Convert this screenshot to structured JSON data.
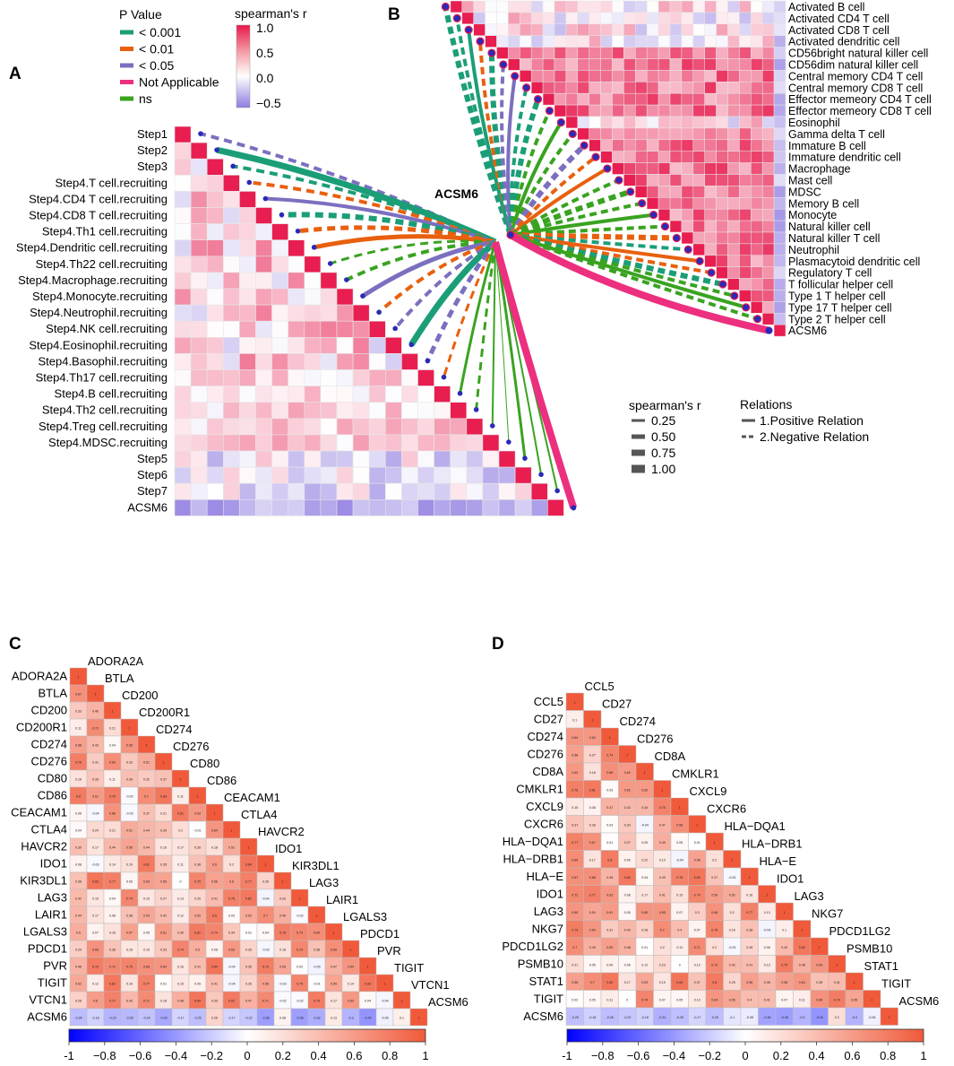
{
  "panels": {
    "a": "A",
    "b": "B",
    "c": "C",
    "d": "D"
  },
  "legend": {
    "pvalue_title": "P Value",
    "pvalue_items": [
      {
        "label": "< 0.001",
        "color": "#1b9e77"
      },
      {
        "label": "< 0.01",
        "color": "#e8600e"
      },
      {
        "label": "< 0.05",
        "color": "#7b6fc0"
      },
      {
        "label": "Not Applicable",
        "color": "#ec2f7e"
      },
      {
        "label": "ns",
        "color": "#39a320"
      }
    ],
    "colorbar_title": "spearman's r",
    "colorbar_ticks": [
      "1.0",
      "0.5",
      "0.0",
      "−0.5"
    ],
    "width_title": "spearman's r",
    "width_items": [
      "0.25",
      "0.50",
      "0.75",
      "1.00"
    ],
    "relation_title": "Relations",
    "relation_items": [
      "1.Positive Relation",
      "2.Negative Relation"
    ]
  },
  "target": "ACSM6",
  "colorbar_cd_ticks": [
    "-1",
    "−0.8",
    "−0.6",
    "−0.4",
    "−0.2",
    "0",
    "0.2",
    "0.4",
    "0.6",
    "0.8",
    "1"
  ],
  "chart_data": [
    {
      "type": "heatmap",
      "panel": "A",
      "title": "",
      "labels": [
        "Step1",
        "Step2",
        "Step3",
        "Step4.T cell.recruiting",
        "Step4.CD4 T cell.recruiting",
        "Step4.CD8 T cell.recruiting",
        "Step4.Th1 cell.recruiting",
        "Step4.Dendritic cell.recruiting",
        "Step4.Th22 cell.recruiting",
        "Step4.Macrophage.recruiting",
        "Step4.Monocyte.recruiting",
        "Step4.Neutrophil.recruiting",
        "Step4.NK cell.recruiting",
        "Step4.Eosinophil.recruiting",
        "Step4.Basophil.recruiting",
        "Step4.Th17 cell.recruiting",
        "Step4.B cell.recruiting",
        "Step4.Th2 cell.recruiting",
        "Step4.Treg cell.recruiting",
        "Step4.MDSC.recruiting",
        "Step5",
        "Step6",
        "Step7",
        "ACSM6"
      ],
      "color_range": [
        -0.5,
        1.0
      ]
    },
    {
      "type": "heatmap",
      "panel": "B",
      "title": "",
      "labels": [
        "Activated B cell",
        "Activated CD4 T cell",
        "Activated CD8 T cell",
        "Activated dendritic cell",
        "CD56bright natural killer cell",
        "CD56dim natural killer cell",
        "Central memory CD4 T cell",
        "Central memory CD8 T cell",
        "Effector memeory CD4 T cell",
        "Effector memeory CD8 T cell",
        "Eosinophil",
        "Gamma delta T cell",
        "Immature  B cell",
        "Immature dendritic cell",
        "Macrophage",
        "Mast cell",
        "MDSC",
        "Memory B cell",
        "Monocyte",
        "Natural killer cell",
        "Natural killer T cell",
        "Neutrophil",
        "Plasmacytoid dendritic cell",
        "Regulatory T cell",
        "T follicular helper cell",
        "Type 1 T helper cell",
        "Type 17 T helper cell",
        "Type 2 T helper cell",
        "ACSM6"
      ],
      "color_range": [
        -0.5,
        1.0
      ]
    },
    {
      "type": "heatmap",
      "panel": "C",
      "title": "",
      "labels": [
        "ADORA2A",
        "BTLA",
        "CD200",
        "CD200R1",
        "CD274",
        "CD276",
        "CD80",
        "CD86",
        "CEACAM1",
        "CTLA4",
        "HAVCR2",
        "IDO1",
        "KIR3DL1",
        "LAG3",
        "LAIR1",
        "LGALS3",
        "PDCD1",
        "PVR",
        "TIGIT",
        "VTCN1",
        "ACSM6"
      ],
      "acsm6_row": [
        -0.26,
        -0.18,
        -0.29,
        -0.28,
        -0.24,
        -0.34,
        -0.17,
        -0.25,
        0.26,
        -0.17,
        -0.22,
        -0.38,
        0.08,
        -0.38,
        -0.32,
        0.13,
        -0.3,
        -0.42,
        -0.06,
        0.1
      ],
      "color_range": [
        -1,
        1
      ]
    },
    {
      "type": "heatmap",
      "panel": "D",
      "title": "",
      "labels": [
        "CCL5",
        "CD27",
        "CD274",
        "CD276",
        "CD8A",
        "CMKLR1",
        "CXCL9",
        "CXCR6",
        "HLA−DQA1",
        "HLA−DRB1",
        "HLA−E",
        "IDO1",
        "LAG3",
        "NKG7",
        "PDCD1LG2",
        "PSMB10",
        "STAT1",
        "TIGIT",
        "ACSM6"
      ],
      "acsm6_row": [
        -0.25,
        -0.18,
        -0.26,
        -0.22,
        -0.18,
        -0.31,
        -0.25,
        -0.17,
        -0.25,
        -0.1,
        -0.08,
        -0.36,
        -0.38,
        -0.3,
        -0.42,
        0.2,
        -0.3,
        -0.06
      ],
      "color_range": [
        -1,
        1
      ]
    }
  ]
}
